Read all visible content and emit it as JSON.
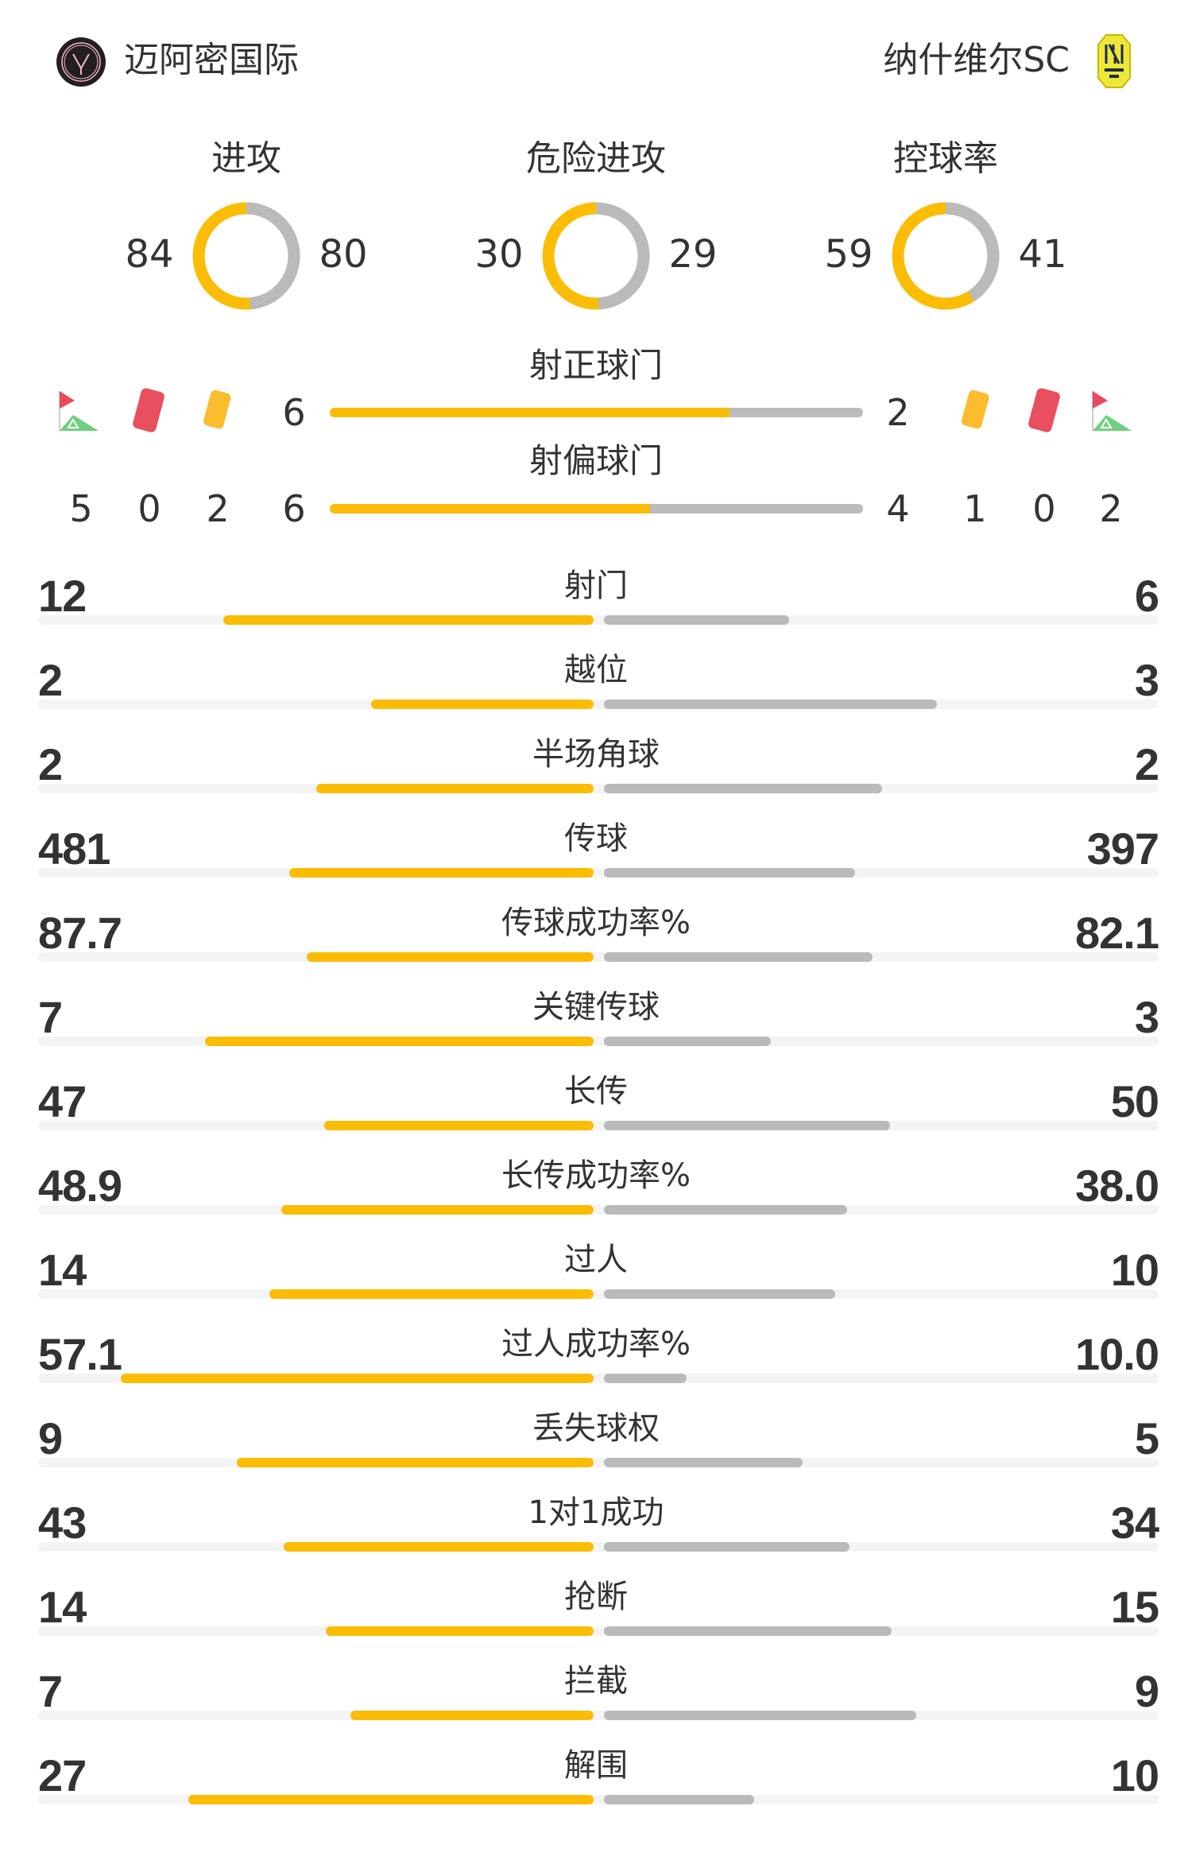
{
  "home": {
    "name": "迈阿密国际",
    "logo": "inter-miami-logo"
  },
  "away": {
    "name": "纳什维尔SC",
    "logo": "nashville-sc-logo"
  },
  "colors": {
    "home": "#fbbc05",
    "away": "#bababa",
    "track": "#f4f4f4",
    "text": "#333333"
  },
  "donuts": [
    {
      "label": "进攻",
      "home": 84,
      "away": 80
    },
    {
      "label": "危险进攻",
      "home": 30,
      "away": 29
    },
    {
      "label": "控球率",
      "home": 59,
      "away": 41
    }
  ],
  "shots_on": {
    "label": "射正球门",
    "home": 6,
    "away": 2
  },
  "shots_off": {
    "label": "射偏球门",
    "home": 6,
    "away": 4
  },
  "discipline": {
    "home": {
      "corners": 5,
      "red_cards": 0,
      "yellow_cards": 2
    },
    "away": {
      "yellow_cards": 1,
      "red_cards": 0,
      "corners": 2
    }
  },
  "stats": [
    {
      "label": "射门",
      "home": "12",
      "away": "6"
    },
    {
      "label": "越位",
      "home": "2",
      "away": "3"
    },
    {
      "label": "半场角球",
      "home": "2",
      "away": "2"
    },
    {
      "label": "传球",
      "home": "481",
      "away": "397"
    },
    {
      "label": "传球成功率%",
      "home": "87.7",
      "away": "82.1"
    },
    {
      "label": "关键传球",
      "home": "7",
      "away": "3"
    },
    {
      "label": "长传",
      "home": "47",
      "away": "50"
    },
    {
      "label": "长传成功率%",
      "home": "48.9",
      "away": "38.0"
    },
    {
      "label": "过人",
      "home": "14",
      "away": "10"
    },
    {
      "label": "过人成功率%",
      "home": "57.1",
      "away": "10.0"
    },
    {
      "label": "丢失球权",
      "home": "9",
      "away": "5"
    },
    {
      "label": "1对1成功",
      "home": "43",
      "away": "34"
    },
    {
      "label": "抢断",
      "home": "14",
      "away": "15"
    },
    {
      "label": "拦截",
      "home": "7",
      "away": "9"
    },
    {
      "label": "解围",
      "home": "27",
      "away": "10"
    }
  ]
}
